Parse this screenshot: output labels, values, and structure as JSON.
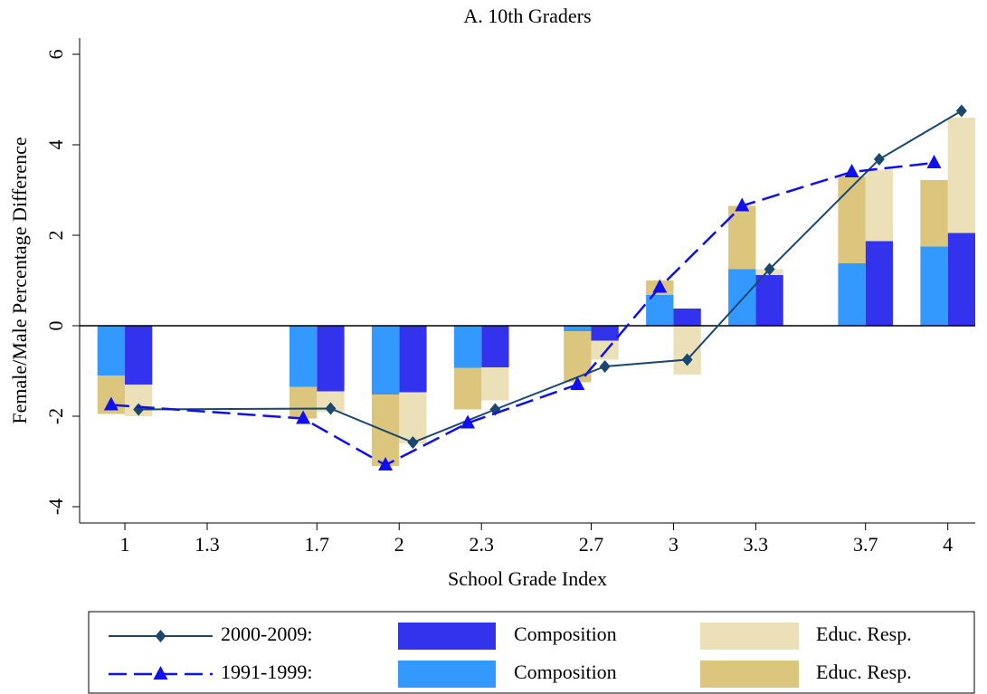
{
  "chart_data": {
    "type": "combo",
    "title": "A. 10th Graders",
    "x_label": "School Grade Index",
    "y_label": "Female/Male Percentage Difference",
    "xlim": [
      0.835,
      4.1
    ],
    "ylim": [
      -4.36,
      6.36
    ],
    "xticks": [
      1,
      1.3,
      1.7,
      2,
      2.3,
      2.7,
      3,
      3.3,
      3.7,
      4
    ],
    "yticks": [
      -4,
      -2,
      0,
      2,
      4,
      6
    ],
    "zero_line": true,
    "bar_width": 0.1,
    "series": [
      {
        "name": "2000-2009:",
        "type": "line",
        "color": "#1a476f",
        "marker": "diamond",
        "dashed": false,
        "x": [
          1.05,
          1.75,
          2.05,
          2.35,
          2.75,
          3.05,
          3.35,
          3.75,
          4.05
        ],
        "values": [
          -1.85,
          -1.83,
          -2.58,
          -1.85,
          -0.9,
          -0.75,
          1.25,
          3.68,
          4.75
        ]
      },
      {
        "name": "Composition",
        "type": "bar",
        "color": "#3333ee",
        "stack": "b",
        "x": [
          1.05,
          1.75,
          2.05,
          2.35,
          2.75,
          3.05,
          3.35,
          3.75,
          4.05
        ],
        "values": [
          -1.3,
          -1.45,
          -1.47,
          -0.92,
          -0.33,
          0.38,
          1.12,
          1.87,
          2.05
        ]
      },
      {
        "name": "Educ. Resp.",
        "type": "bar",
        "color": "#ece0b8",
        "stack": "b",
        "x": [
          1.05,
          1.75,
          2.05,
          2.35,
          2.75,
          3.05,
          3.35,
          3.75,
          4.05
        ],
        "values": [
          -0.7,
          -0.45,
          -1.13,
          -0.73,
          -0.42,
          -1.08,
          0.13,
          1.58,
          2.55
        ]
      },
      {
        "name": "1991-1999:",
        "type": "line",
        "color": "#1010ee",
        "marker": "triangle",
        "dashed": true,
        "x": [
          0.95,
          1.65,
          1.95,
          2.25,
          2.65,
          2.95,
          3.25,
          3.65,
          3.95
        ],
        "values": [
          -1.75,
          -2.05,
          -3.08,
          -2.15,
          -1.3,
          0.85,
          2.65,
          3.4,
          3.6
        ]
      },
      {
        "name": "Composition",
        "type": "bar",
        "color": "#3399ff",
        "stack": "a",
        "x": [
          0.95,
          1.65,
          1.95,
          2.25,
          2.65,
          2.95,
          3.25,
          3.65,
          3.95
        ],
        "values": [
          -1.1,
          -1.35,
          -1.52,
          -0.93,
          -0.12,
          0.68,
          1.25,
          1.38,
          1.75
        ]
      },
      {
        "name": "Educ. Resp.",
        "type": "bar",
        "color": "#dcc67e",
        "stack": "a",
        "x": [
          0.95,
          1.65,
          1.95,
          2.25,
          2.65,
          2.95,
          3.25,
          3.65,
          3.95
        ],
        "values": [
          -0.85,
          -0.7,
          -1.58,
          -0.92,
          -1.13,
          0.32,
          1.4,
          1.92,
          1.47
        ]
      }
    ]
  }
}
